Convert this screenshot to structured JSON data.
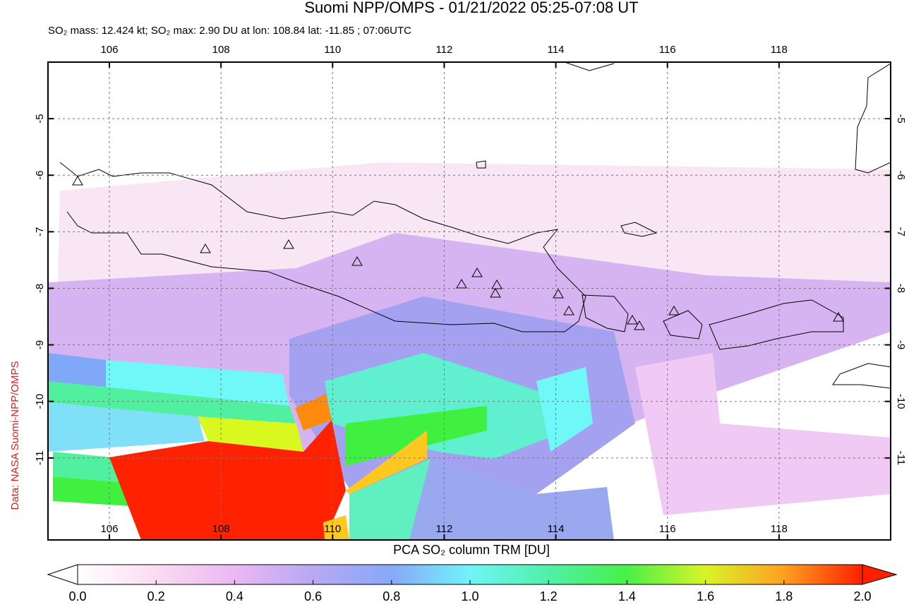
{
  "chart_data": {
    "type": "map",
    "title": "Suomi NPP/OMPS - 01/21/2022 05:25-07:08 UT",
    "subtitle": "SO₂ mass: 12.424 kt; SO₂ max: 2.90 DU at lon: 108.84 lat: -11.85 ; 07:06UTC",
    "credit": "Data: NASA Suomi-NPP/OMPS",
    "xlim": [
      104.9,
      120.0
    ],
    "ylim": [
      -12.45,
      -4.0
    ],
    "xticks": [
      106,
      108,
      110,
      112,
      114,
      116,
      118
    ],
    "yticks": [
      -5,
      -6,
      -7,
      -8,
      -9,
      -10,
      -11
    ],
    "grid": true,
    "colorbar": {
      "label": "PCA SO₂ column TRM [DU]",
      "lim": [
        0,
        2
      ],
      "ticks": [
        {
          "value": 0,
          "label": "0.0"
        },
        0.2,
        0.4,
        0.6,
        0.8,
        {
          "value": 1,
          "label": "1.0"
        },
        1.2,
        1.4,
        1.6,
        1.8,
        {
          "value": 2,
          "label": "2.0"
        }
      ]
    }
  }
}
